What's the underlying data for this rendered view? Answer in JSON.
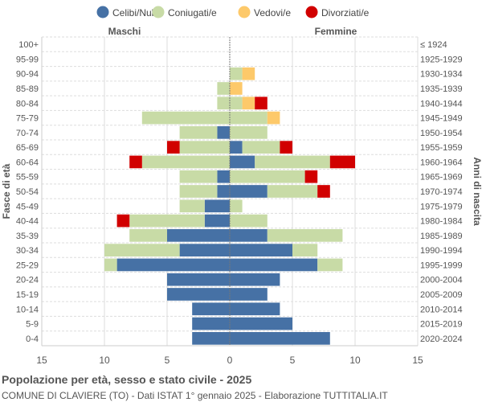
{
  "chart_data": {
    "type": "bar",
    "title": "Popolazione per età, sesso e stato civile - 2025",
    "subtitle": "COMUNE DI CLAVIERE (TO) - Dati ISTAT 1° gennaio 2025 - Elaborazione TUTTITALIA.IT",
    "left_label": "Maschi",
    "right_label": "Femmine",
    "ylabel_left": "Fasce di età",
    "ylabel_right": "Anni di nascita",
    "xlim": [
      -15,
      15
    ],
    "xticks": [
      "15",
      "10",
      "5",
      "0",
      "5",
      "10",
      "15"
    ],
    "legend_position": "top",
    "grid": true,
    "age_groups": [
      "100+",
      "95-99",
      "90-94",
      "85-89",
      "80-84",
      "75-79",
      "70-74",
      "65-69",
      "60-64",
      "55-59",
      "50-54",
      "45-49",
      "40-44",
      "35-39",
      "30-34",
      "25-29",
      "20-24",
      "15-19",
      "10-14",
      "5-9",
      "0-4"
    ],
    "birth_years": [
      "≤ 1924",
      "1925-1929",
      "1930-1934",
      "1935-1939",
      "1940-1944",
      "1945-1949",
      "1950-1954",
      "1955-1959",
      "1960-1964",
      "1965-1969",
      "1970-1974",
      "1975-1979",
      "1980-1984",
      "1985-1989",
      "1990-1994",
      "1995-1999",
      "2000-2004",
      "2005-2009",
      "2010-2014",
      "2015-2019",
      "2020-2024"
    ],
    "series": [
      {
        "name": "Celibi/Nubili",
        "color": "#4671a5",
        "males": [
          0,
          0,
          0,
          0,
          0,
          0,
          1,
          0,
          0,
          1,
          1,
          2,
          2,
          5,
          4,
          9,
          5,
          5,
          3,
          3,
          3
        ],
        "females": [
          0,
          0,
          0,
          0,
          0,
          0,
          0,
          1,
          2,
          0,
          3,
          0,
          0,
          3,
          5,
          7,
          4,
          3,
          4,
          5,
          8
        ]
      },
      {
        "name": "Coniugati/e",
        "color": "#c8dba6",
        "males": [
          0,
          0,
          0,
          1,
          1,
          7,
          3,
          4,
          7,
          3,
          3,
          2,
          6,
          3,
          6,
          1,
          0,
          0,
          0,
          0,
          0
        ],
        "females": [
          0,
          0,
          1,
          0,
          1,
          3,
          3,
          3,
          6,
          6,
          4,
          1,
          3,
          6,
          2,
          2,
          0,
          0,
          0,
          0,
          0
        ]
      },
      {
        "name": "Vedovi/e",
        "color": "#fdc96a",
        "males": [
          0,
          0,
          0,
          0,
          0,
          0,
          0,
          0,
          0,
          0,
          0,
          0,
          0,
          0,
          0,
          0,
          0,
          0,
          0,
          0,
          0
        ],
        "females": [
          0,
          0,
          1,
          1,
          1,
          1,
          0,
          0,
          0,
          0,
          0,
          0,
          0,
          0,
          0,
          0,
          0,
          0,
          0,
          0,
          0
        ]
      },
      {
        "name": "Divorziati/e",
        "color": "#d10000",
        "males": [
          0,
          0,
          0,
          0,
          0,
          0,
          0,
          1,
          1,
          0,
          0,
          0,
          1,
          0,
          0,
          0,
          0,
          0,
          0,
          0,
          0
        ],
        "females": [
          0,
          0,
          0,
          0,
          1,
          0,
          0,
          1,
          2,
          1,
          1,
          0,
          0,
          0,
          0,
          0,
          0,
          0,
          0,
          0,
          0
        ]
      }
    ]
  }
}
